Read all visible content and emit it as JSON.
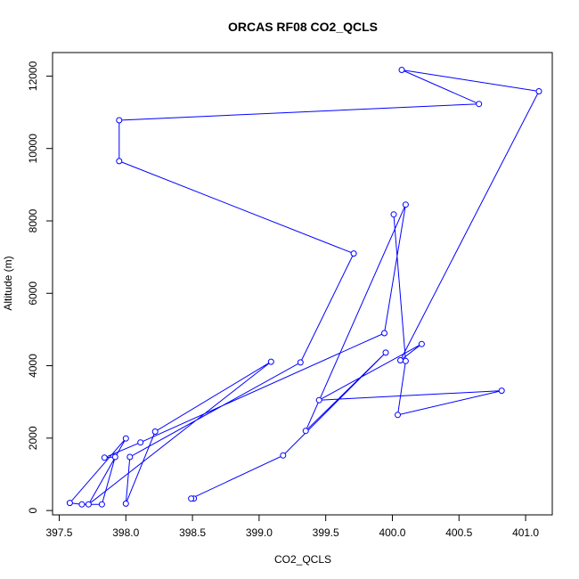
{
  "chart_data": {
    "type": "line",
    "title": "ORCAS RF08 CO2_QCLS",
    "xlabel": "CO2_QCLS",
    "ylabel": "Altitude (m)",
    "xlim": [
      397.45,
      401.2
    ],
    "ylim": [
      -120,
      12650
    ],
    "x_ticks": [
      397.5,
      398.0,
      398.5,
      399.0,
      399.5,
      400.0,
      400.5,
      401.0
    ],
    "x_tick_labels": [
      "397.5",
      "398.0",
      "398.5",
      "399.0",
      "399.5",
      "400.0",
      "400.5",
      "401.0"
    ],
    "y_ticks": [
      0,
      2000,
      4000,
      6000,
      8000,
      10000,
      12000
    ],
    "y_tick_labels": [
      "0",
      "2000",
      "4000",
      "6000",
      "8000",
      "10000",
      "12000"
    ],
    "grid": false,
    "series": [
      {
        "color": "#0000ff",
        "marker": "open-circle",
        "x": [
          398.51,
          398.49,
          399.18,
          399.95,
          399.35,
          400.1,
          399.94,
          398.11,
          397.84,
          397.92,
          397.82,
          397.67,
          397.58,
          398.0,
          397.72,
          399.09,
          398.22,
          398.0,
          398.03,
          399.31,
          399.71,
          397.95,
          397.95,
          400.65,
          400.07,
          401.1,
          400.06,
          400.22,
          399.45,
          400.82,
          400.04,
          400.1,
          400.01
        ],
        "y": [
          330,
          330,
          1520,
          4360,
          2200,
          8450,
          4900,
          1880,
          1460,
          1480,
          170,
          170,
          210,
          1990,
          170,
          4110,
          2180,
          190,
          1480,
          4090,
          7100,
          9650,
          10780,
          11230,
          12170,
          11580,
          4150,
          4600,
          3050,
          3310,
          2640,
          4130,
          8180
        ]
      }
    ]
  }
}
